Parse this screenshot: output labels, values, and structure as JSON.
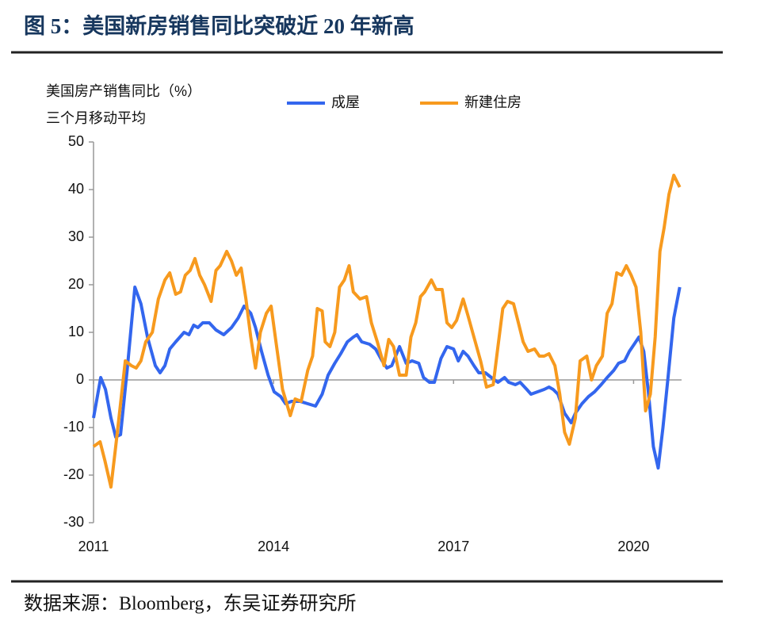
{
  "chart_data": {
    "type": "line",
    "title": "图 5：美国新房销售同比突破近 20 年新高",
    "ylabel": [
      "美国房产销售同比（%）",
      "三个月移动平均"
    ],
    "source": "数据来源：Bloomberg，东吴证券研究所",
    "xlim": [
      2011,
      2020.8
    ],
    "xticks": [
      2011,
      2014,
      2017,
      2020
    ],
    "ylim": [
      -30,
      50
    ],
    "yticks": [
      -30,
      -20,
      -10,
      0,
      10,
      20,
      30,
      40,
      50
    ],
    "series": [
      {
        "name": "成屋",
        "color": "#3366ee",
        "x": [
          2011.0,
          2011.12,
          2011.2,
          2011.29,
          2011.37,
          2011.45,
          2011.56,
          2011.69,
          2011.79,
          2011.9,
          2012.03,
          2012.11,
          2012.19,
          2012.27,
          2012.37,
          2012.51,
          2012.59,
          2012.67,
          2012.74,
          2012.82,
          2012.93,
          2013.04,
          2013.17,
          2013.3,
          2013.41,
          2013.51,
          2013.62,
          2013.7,
          2013.8,
          2013.91,
          2014.01,
          2014.12,
          2014.2,
          2014.3,
          2014.44,
          2014.57,
          2014.7,
          2014.81,
          2014.91,
          2015.02,
          2015.12,
          2015.23,
          2015.33,
          2015.39,
          2015.47,
          2015.6,
          2015.7,
          2015.81,
          2015.89,
          2015.97,
          2016.1,
          2016.21,
          2016.31,
          2016.42,
          2016.5,
          2016.6,
          2016.68,
          2016.79,
          2016.89,
          2017.0,
          2017.08,
          2017.16,
          2017.24,
          2017.34,
          2017.42,
          2017.53,
          2017.63,
          2017.74,
          2017.85,
          2017.92,
          2018.03,
          2018.11,
          2018.22,
          2018.29,
          2018.4,
          2018.51,
          2018.59,
          2018.66,
          2018.74,
          2018.85,
          2018.96,
          2019.03,
          2019.14,
          2019.25,
          2019.35,
          2019.46,
          2019.56,
          2019.67,
          2019.75,
          2019.85,
          2019.93,
          2020.01,
          2020.09,
          2020.17,
          2020.25,
          2020.33,
          2020.41,
          2020.49,
          2020.57,
          2020.67,
          2020.77
        ],
        "values": [
          -8,
          0.5,
          -2,
          -8,
          -12,
          -11.5,
          2,
          19.5,
          16,
          9,
          3,
          1.5,
          3,
          6.5,
          8,
          10,
          9.5,
          11.5,
          11,
          12,
          12,
          10.5,
          9.5,
          11,
          13,
          15.5,
          14,
          11,
          6,
          1,
          -2.5,
          -3.5,
          -5,
          -4.5,
          -4.5,
          -5,
          -5.5,
          -3,
          1,
          3.5,
          5.5,
          8,
          9,
          9.5,
          8,
          7.5,
          6.5,
          4,
          2.5,
          3,
          7,
          3.5,
          4,
          3.5,
          0.5,
          -0.5,
          -0.5,
          4.5,
          7,
          6.5,
          4,
          6,
          5,
          3,
          1.5,
          1.5,
          0.5,
          -0.5,
          0.5,
          -0.5,
          -1,
          -0.5,
          -2,
          -3,
          -2.5,
          -2,
          -1.5,
          -2,
          -3,
          -7,
          -9,
          -7,
          -5,
          -3.5,
          -2.5,
          -1,
          0.5,
          2,
          3.5,
          4,
          6,
          7.5,
          9,
          6,
          -3,
          -14,
          -18.5,
          -10,
          0,
          13,
          19.5
        ]
      },
      {
        "name": "新建住房",
        "color": "#f79a1e",
        "x": [
          2011.0,
          2011.11,
          2011.19,
          2011.29,
          2011.37,
          2011.45,
          2011.53,
          2011.63,
          2011.71,
          2011.79,
          2011.87,
          2011.98,
          2012.08,
          2012.19,
          2012.27,
          2012.37,
          2012.45,
          2012.53,
          2012.61,
          2012.69,
          2012.77,
          2012.85,
          2012.96,
          2013.04,
          2013.11,
          2013.22,
          2013.3,
          2013.38,
          2013.46,
          2013.54,
          2013.62,
          2013.7,
          2013.78,
          2013.88,
          2013.96,
          2014.04,
          2014.15,
          2014.28,
          2014.36,
          2014.46,
          2014.57,
          2014.65,
          2014.73,
          2014.81,
          2014.86,
          2014.94,
          2015.02,
          2015.1,
          2015.18,
          2015.26,
          2015.33,
          2015.44,
          2015.55,
          2015.63,
          2015.73,
          2015.84,
          2015.92,
          2016.0,
          2016.1,
          2016.21,
          2016.29,
          2016.37,
          2016.45,
          2016.52,
          2016.63,
          2016.71,
          2016.81,
          2016.89,
          2016.97,
          2017.05,
          2017.16,
          2017.24,
          2017.34,
          2017.45,
          2017.55,
          2017.66,
          2017.74,
          2017.82,
          2017.9,
          2018.0,
          2018.08,
          2018.16,
          2018.24,
          2018.35,
          2018.43,
          2018.51,
          2018.59,
          2018.69,
          2018.77,
          2018.85,
          2018.93,
          2019.03,
          2019.11,
          2019.22,
          2019.3,
          2019.38,
          2019.48,
          2019.56,
          2019.64,
          2019.72,
          2019.8,
          2019.88,
          2019.96,
          2020.04,
          2020.12,
          2020.2,
          2020.28,
          2020.36,
          2020.44,
          2020.51,
          2020.59,
          2020.67,
          2020.77
        ],
        "values": [
          -14,
          -13,
          -17,
          -22.5,
          -14,
          -5,
          4,
          3,
          2.5,
          4,
          8,
          10,
          17,
          21,
          22.5,
          18,
          18.5,
          22,
          23,
          25.5,
          22,
          20,
          16.5,
          23,
          24,
          27,
          25,
          22,
          23.5,
          17,
          9,
          2.5,
          10,
          14,
          15.5,
          8,
          -2,
          -7.5,
          -4,
          -4.5,
          2,
          5,
          15,
          14.5,
          8,
          7,
          10,
          19.5,
          21,
          24,
          18.5,
          17,
          17.5,
          12,
          8,
          3,
          8.5,
          7,
          1,
          1,
          9,
          12,
          17.5,
          18.5,
          21,
          19,
          19,
          12,
          11,
          12.5,
          17,
          13.5,
          9,
          4,
          -1.5,
          -1,
          7,
          15,
          16.5,
          16,
          12,
          8,
          6,
          6.5,
          5,
          5,
          5.5,
          3,
          -3,
          -11,
          -13.5,
          -8,
          4,
          5,
          0,
          3,
          5,
          14,
          16,
          22.5,
          22,
          24,
          22,
          19.5,
          10,
          -6.5,
          -3,
          9,
          27,
          32,
          39,
          43,
          40.5
        ]
      }
    ]
  }
}
